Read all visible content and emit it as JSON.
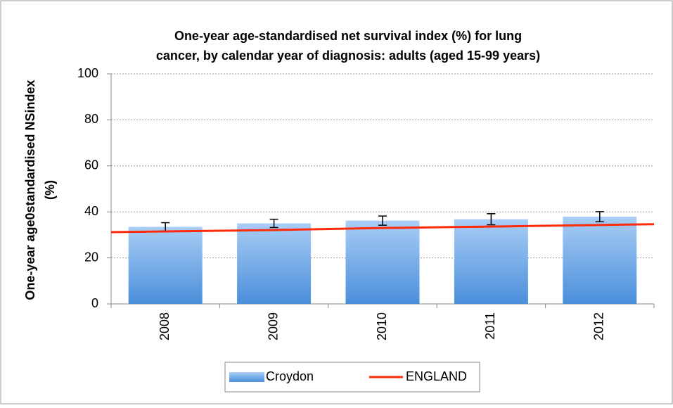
{
  "chart_data": {
    "type": "bar",
    "title": [
      "One-year age-standardised net survival index (%) for lung",
      "cancer, by calendar year of diagnosis: adults (aged 15-99 years)"
    ],
    "y_label": [
      "One-year age0standardised NSindex",
      "(%)"
    ],
    "categories": [
      "2008",
      "2009",
      "2010",
      "2011",
      "2012"
    ],
    "series": [
      {
        "name": "Croydon",
        "type": "bar",
        "color": "#6fa8e6",
        "values": [
          33.5,
          35.0,
          36.2,
          36.8,
          37.9
        ],
        "errors": [
          1.8,
          1.8,
          2.0,
          2.4,
          2.2
        ]
      },
      {
        "name": "ENGLAND",
        "type": "line",
        "color": "#ff2a0a",
        "values": [
          31.5,
          32.1,
          33.0,
          33.6,
          34.3
        ]
      }
    ],
    "ylim": [
      0,
      100
    ],
    "yticks": [
      0,
      20,
      40,
      60,
      80,
      100
    ],
    "grid": true,
    "legend": "bottom"
  }
}
